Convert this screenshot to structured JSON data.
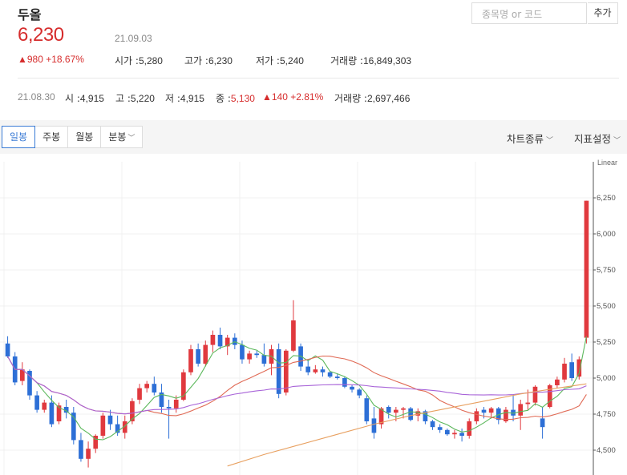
{
  "header": {
    "stock_name": "두올",
    "price": "6,230",
    "date": "21.09.03",
    "change": "▲980 +18.67%",
    "open_label": "시가 :",
    "open": "5,280",
    "high_label": "고가 :",
    "high": "6,230",
    "low_label": "저가 :",
    "low": "5,240",
    "volume_label": "거래량 :",
    "volume": "16,849,303"
  },
  "search": {
    "placeholder": "종목명 or 코드",
    "add_label": "추가"
  },
  "previous": {
    "date": "21.08.30",
    "open_label": "시 :",
    "open": "4,915",
    "high_label": "고 :",
    "high": "5,220",
    "low_label": "저 :",
    "low": "4,915",
    "close_label": "종 :",
    "close": "5,130",
    "change": "▲140 +2.81%",
    "volume_label": "거래량 :",
    "volume": "2,697,466"
  },
  "toolbar": {
    "tabs": [
      {
        "label": "일봉",
        "active": true
      },
      {
        "label": "주봉",
        "active": false
      },
      {
        "label": "월봉",
        "active": false
      },
      {
        "label": "분봉",
        "active": false,
        "dropdown": true
      }
    ],
    "chart_type_label": "차트종류",
    "indicator_label": "지표설정",
    "chevron": "﹀"
  },
  "colors": {
    "up": "#e0393e",
    "down": "#2d6fd6",
    "ma5": "#5cb85c",
    "ma20": "#e06a55",
    "ma60": "#a864d8",
    "ma120": "#e8a060"
  },
  "chart_data": {
    "type": "candlestick",
    "scale_label": "Linear",
    "ylim": [
      4400,
      6420
    ],
    "y_ticks": [
      "6,250",
      "6,000",
      "5,750",
      "5,500",
      "5,250",
      "5,000",
      "4,750",
      "4,500"
    ],
    "y_tick_values": [
      6250,
      6000,
      5750,
      5500,
      5250,
      5000,
      4750,
      4500
    ],
    "grid": true,
    "candles": [
      [
        5240,
        5290,
        5140,
        5150
      ],
      [
        5150,
        5180,
        4950,
        4970
      ],
      [
        4980,
        5110,
        4950,
        5060
      ],
      [
        5050,
        5060,
        4850,
        4880
      ],
      [
        4880,
        4910,
        4760,
        4780
      ],
      [
        4780,
        4850,
        4760,
        4830
      ],
      [
        4830,
        4880,
        4660,
        4680
      ],
      [
        4700,
        4830,
        4680,
        4810
      ],
      [
        4800,
        4850,
        4720,
        4760
      ],
      [
        4760,
        4800,
        4540,
        4570
      ],
      [
        4570,
        4620,
        4420,
        4440
      ],
      [
        4440,
        4560,
        4380,
        4510
      ],
      [
        4510,
        4610,
        4480,
        4600
      ],
      [
        4600,
        4760,
        4580,
        4740
      ],
      [
        4740,
        4780,
        4640,
        4680
      ],
      [
        4680,
        4740,
        4600,
        4620
      ],
      [
        4620,
        4740,
        4580,
        4700
      ],
      [
        4700,
        4860,
        4680,
        4840
      ],
      [
        4850,
        4960,
        4820,
        4930
      ],
      [
        4930,
        4980,
        4900,
        4960
      ],
      [
        4960,
        5010,
        4880,
        4900
      ],
      [
        4900,
        4960,
        4760,
        4800
      ],
      [
        4800,
        4850,
        4580,
        4790
      ],
      [
        4790,
        4880,
        4760,
        4850
      ],
      [
        4850,
        5060,
        4840,
        5040
      ],
      [
        5040,
        5230,
        5020,
        5200
      ],
      [
        5200,
        5240,
        5080,
        5100
      ],
      [
        5100,
        5260,
        5080,
        5230
      ],
      [
        5230,
        5330,
        5180,
        5300
      ],
      [
        5300,
        5350,
        5200,
        5220
      ],
      [
        5220,
        5300,
        5160,
        5280
      ],
      [
        5280,
        5310,
        5200,
        5230
      ],
      [
        5230,
        5260,
        5100,
        5130
      ],
      [
        5130,
        5190,
        5100,
        5170
      ],
      [
        5170,
        5190,
        5140,
        5160
      ],
      [
        5160,
        5240,
        5080,
        5100
      ],
      [
        5100,
        5230,
        5020,
        5200
      ],
      [
        5200,
        5240,
        4860,
        4890
      ],
      [
        4900,
        5200,
        4880,
        5190
      ],
      [
        5190,
        5540,
        5180,
        5400
      ],
      [
        5220,
        5240,
        5050,
        5080
      ],
      [
        5080,
        5130,
        5020,
        5040
      ],
      [
        5040,
        5090,
        5030,
        5060
      ],
      [
        5060,
        5080,
        5010,
        5040
      ],
      [
        5040,
        5050,
        5000,
        5010
      ],
      [
        5010,
        5030,
        4990,
        5000
      ],
      [
        5000,
        5010,
        4930,
        4940
      ],
      [
        4940,
        4950,
        4900,
        4920
      ],
      [
        4920,
        4930,
        4860,
        4880
      ],
      [
        4860,
        4880,
        4680,
        4700
      ],
      [
        4720,
        4800,
        4580,
        4620
      ],
      [
        4680,
        4800,
        4650,
        4790
      ],
      [
        4800,
        4810,
        4720,
        4760
      ],
      [
        4760,
        4800,
        4700,
        4780
      ],
      [
        4780,
        4800,
        4720,
        4790
      ],
      [
        4790,
        4800,
        4700,
        4710
      ],
      [
        4740,
        4790,
        4700,
        4770
      ],
      [
        4770,
        4780,
        4680,
        4700
      ],
      [
        4700,
        4710,
        4640,
        4660
      ],
      [
        4660,
        4680,
        4620,
        4640
      ],
      [
        4640,
        4650,
        4600,
        4610
      ],
      [
        4610,
        4640,
        4580,
        4620
      ],
      [
        4620,
        4650,
        4560,
        4600
      ],
      [
        4600,
        4720,
        4580,
        4700
      ],
      [
        4700,
        4790,
        4680,
        4770
      ],
      [
        4780,
        4800,
        4720,
        4760
      ],
      [
        4760,
        4800,
        4720,
        4790
      ],
      [
        4790,
        4800,
        4680,
        4710
      ],
      [
        4700,
        4800,
        4690,
        4780
      ],
      [
        4780,
        4880,
        4700,
        4740
      ],
      [
        4740,
        4850,
        4640,
        4820
      ],
      [
        4820,
        4920,
        4780,
        4830
      ],
      [
        4830,
        4950,
        4810,
        4940
      ],
      [
        4720,
        4800,
        4580,
        4660
      ],
      [
        4800,
        4960,
        4790,
        4950
      ],
      [
        4950,
        5010,
        4930,
        4990
      ],
      [
        4990,
        5140,
        4970,
        5100
      ],
      [
        5110,
        5170,
        4980,
        5000
      ],
      [
        5010,
        5150,
        4990,
        5130
      ],
      [
        5280,
        6230,
        5240,
        6230
      ]
    ],
    "moving_averages": [
      {
        "name": "MA5",
        "color": "#5cb85c"
      },
      {
        "name": "MA20",
        "color": "#e06a55"
      },
      {
        "name": "MA60",
        "color": "#a864d8"
      },
      {
        "name": "MA120",
        "color": "#e8a060",
        "values": [
          [
            30,
            4390
          ],
          [
            35,
            4470
          ],
          [
            40,
            4540
          ],
          [
            45,
            4610
          ],
          [
            50,
            4680
          ],
          [
            55,
            4740
          ],
          [
            60,
            4790
          ],
          [
            65,
            4840
          ],
          [
            70,
            4890
          ],
          [
            75,
            4930
          ],
          [
            79,
            4960
          ]
        ]
      }
    ]
  }
}
